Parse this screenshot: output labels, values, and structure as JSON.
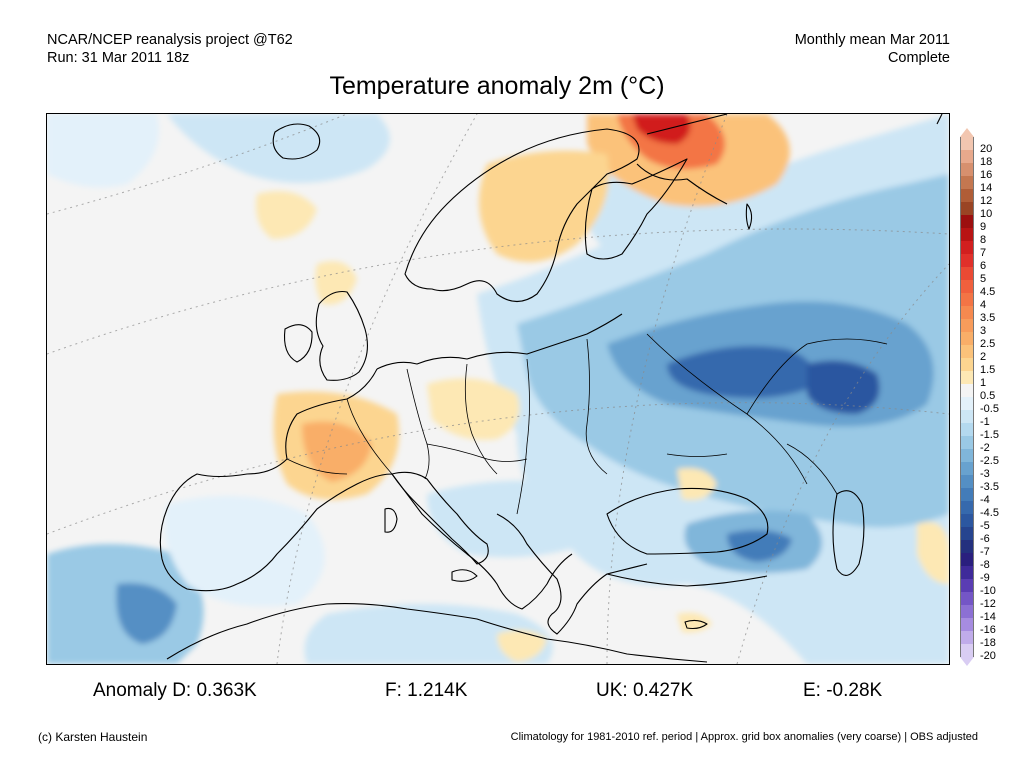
{
  "header": {
    "left_line1": "NCAR/NCEP reanalysis project @T62",
    "left_line2": "Run: 31 Mar 2011 18z",
    "right_line1": "Monthly mean Mar 2011",
    "right_line2": "Complete"
  },
  "title": "Temperature anomaly 2m (°C)",
  "legend": {
    "levels": [
      {
        "label": "20",
        "color": "#f2c6b0"
      },
      {
        "label": "18",
        "color": "#e8a98c"
      },
      {
        "label": "16",
        "color": "#d7906e"
      },
      {
        "label": "14",
        "color": "#c47750"
      },
      {
        "label": "12",
        "color": "#b05d37"
      },
      {
        "label": "10",
        "color": "#9a4424"
      },
      {
        "label": "9",
        "color": "#9c0f0f"
      },
      {
        "label": "8",
        "color": "#b81414"
      },
      {
        "label": "7",
        "color": "#d11f1f"
      },
      {
        "label": "6",
        "color": "#e0302a"
      },
      {
        "label": "5",
        "color": "#ea4a34"
      },
      {
        "label": "4.5",
        "color": "#f0603d"
      },
      {
        "label": "4",
        "color": "#f37445"
      },
      {
        "label": "3.5",
        "color": "#f6894f"
      },
      {
        "label": "3",
        "color": "#f89c5b"
      },
      {
        "label": "2.5",
        "color": "#f9ae68"
      },
      {
        "label": "2",
        "color": "#fbc27a"
      },
      {
        "label": "1.5",
        "color": "#fcd590"
      },
      {
        "label": "1",
        "color": "#fde8b4"
      },
      {
        "label": "0.5",
        "color": "#f4f4f4"
      },
      {
        "label": "-0.5",
        "color": "#e3f1fa"
      },
      {
        "label": "-1",
        "color": "#cde6f5"
      },
      {
        "label": "-1.5",
        "color": "#b4d9ef"
      },
      {
        "label": "-2",
        "color": "#9ac9e5"
      },
      {
        "label": "-2.5",
        "color": "#80b6da"
      },
      {
        "label": "-3",
        "color": "#68a2cf"
      },
      {
        "label": "-3.5",
        "color": "#548fc4"
      },
      {
        "label": "-4",
        "color": "#437cb9"
      },
      {
        "label": "-4.5",
        "color": "#3669ad"
      },
      {
        "label": "-5",
        "color": "#2c57a0"
      },
      {
        "label": "-6",
        "color": "#26448f"
      },
      {
        "label": "-7",
        "color": "#24307e"
      },
      {
        "label": "-8",
        "color": "#2a1f7e"
      },
      {
        "label": "-9",
        "color": "#3f2a9a"
      },
      {
        "label": "-10",
        "color": "#5a3db3"
      },
      {
        "label": "-12",
        "color": "#7456c6"
      },
      {
        "label": "-14",
        "color": "#8c70d4"
      },
      {
        "label": "-16",
        "color": "#a68ce0"
      },
      {
        "label": "-18",
        "color": "#c0acea"
      },
      {
        "label": "-20",
        "color": "#d9cdf3"
      }
    ]
  },
  "stats": {
    "d": "Anomaly D: 0.363K",
    "f": "F: 1.214K",
    "uk": "UK: 0.427K",
    "e": "E: -0.28K"
  },
  "footer": {
    "left": "(c) Karsten Haustein",
    "right": "Climatology for 1981-2010 ref. period | Approx. grid box anomalies (very coarse) | OBS adjusted"
  }
}
